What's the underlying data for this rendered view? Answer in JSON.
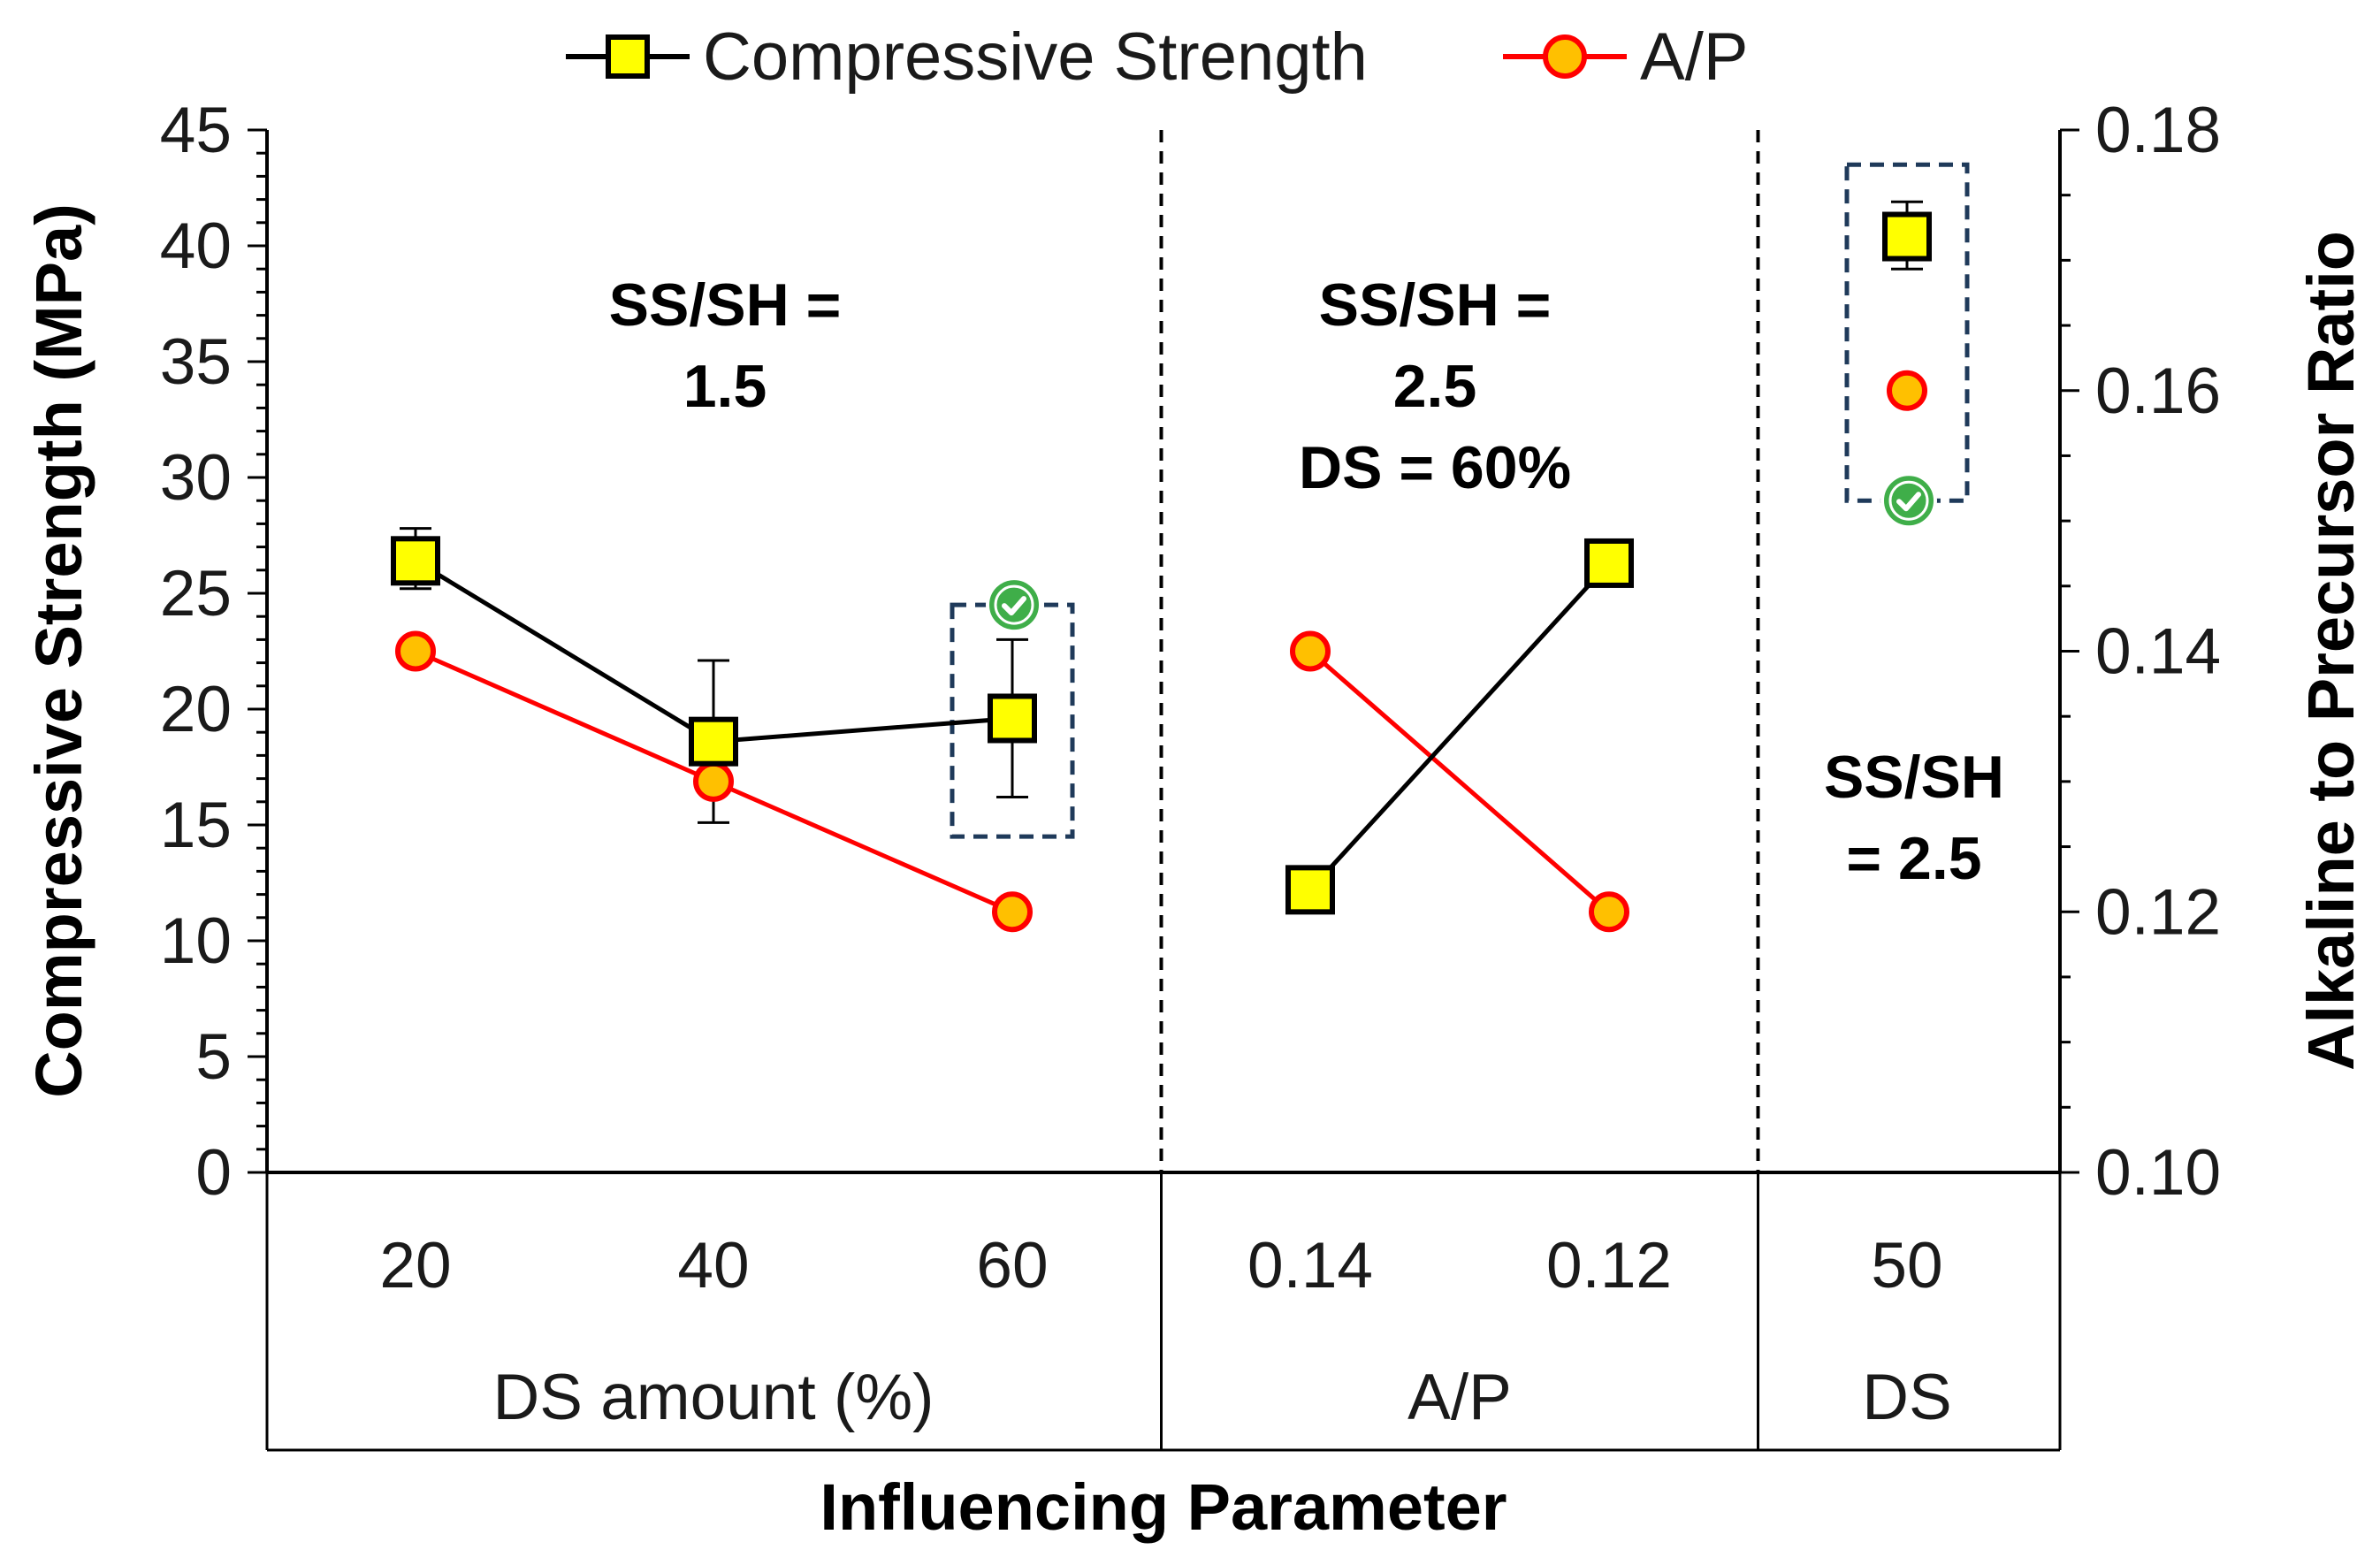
{
  "chart_data": {
    "type": "line",
    "legend": {
      "position": "top-center",
      "entries": [
        {
          "name": "Compressive Strength",
          "marker": "square",
          "color": "#000000",
          "fill": "#ffff00"
        },
        {
          "name": "A/P",
          "marker": "circle",
          "color": "#ff0000",
          "fill": "#ffc000"
        }
      ]
    },
    "xlabel": "Influencing Parameter",
    "ylabel_left": "Compressive Strength (MPa)",
    "ylabel_right": "Alkaline to Precursor Ratio",
    "ylim_left": [
      0,
      45
    ],
    "ylim_right": [
      0.1,
      0.18
    ],
    "yticks_left": [
      "0",
      "5",
      "10",
      "15",
      "20",
      "25",
      "30",
      "35",
      "40",
      "45"
    ],
    "yticks_right": [
      "0.10",
      "0.12",
      "0.14",
      "0.16",
      "0.18"
    ],
    "categories": [
      "20",
      "40",
      "60",
      "0.14",
      "0.12",
      "50"
    ],
    "groups": [
      {
        "label": "DS amount (%)",
        "categories": [
          "20",
          "40",
          "60"
        ]
      },
      {
        "label": "A/P",
        "categories": [
          "0.14",
          "0.12"
        ]
      },
      {
        "label": "DS",
        "categories": [
          "50"
        ]
      }
    ],
    "series": [
      {
        "name": "Compressive Strength",
        "axis": "left",
        "values": [
          26.4,
          18.6,
          19.6,
          12.2,
          26.3,
          40.4
        ],
        "error_low": [
          25.2,
          15.1,
          16.2,
          null,
          null,
          39.0
        ],
        "error_high": [
          27.8,
          22.1,
          23.0,
          null,
          null,
          41.9
        ],
        "line_segments": [
          [
            0,
            1,
            2
          ],
          [
            3,
            4
          ]
        ]
      },
      {
        "name": "A/P",
        "axis": "right",
        "values": [
          0.14,
          0.13,
          0.12,
          0.14,
          0.12,
          0.16
        ],
        "line_segments": [
          [
            0,
            1,
            2
          ],
          [
            3,
            4
          ]
        ]
      }
    ],
    "annotations": [
      {
        "lines": [
          "SS/SH =",
          "1.5"
        ]
      },
      {
        "lines": [
          "SS/SH =",
          "2.5",
          "DS = 60%"
        ]
      },
      {
        "lines": [
          "SS/SH",
          "= 2.5"
        ]
      }
    ],
    "highlight_boxes": [
      {
        "category_index": 2,
        "ylim": [
          14.5,
          24.5
        ],
        "check_mark_value": 24.5
      },
      {
        "category_index": 5,
        "ylim": [
          29.0,
          43.5
        ],
        "check_mark_value": 29.0
      }
    ],
    "dividers_after_category_index": [
      2,
      4
    ]
  }
}
